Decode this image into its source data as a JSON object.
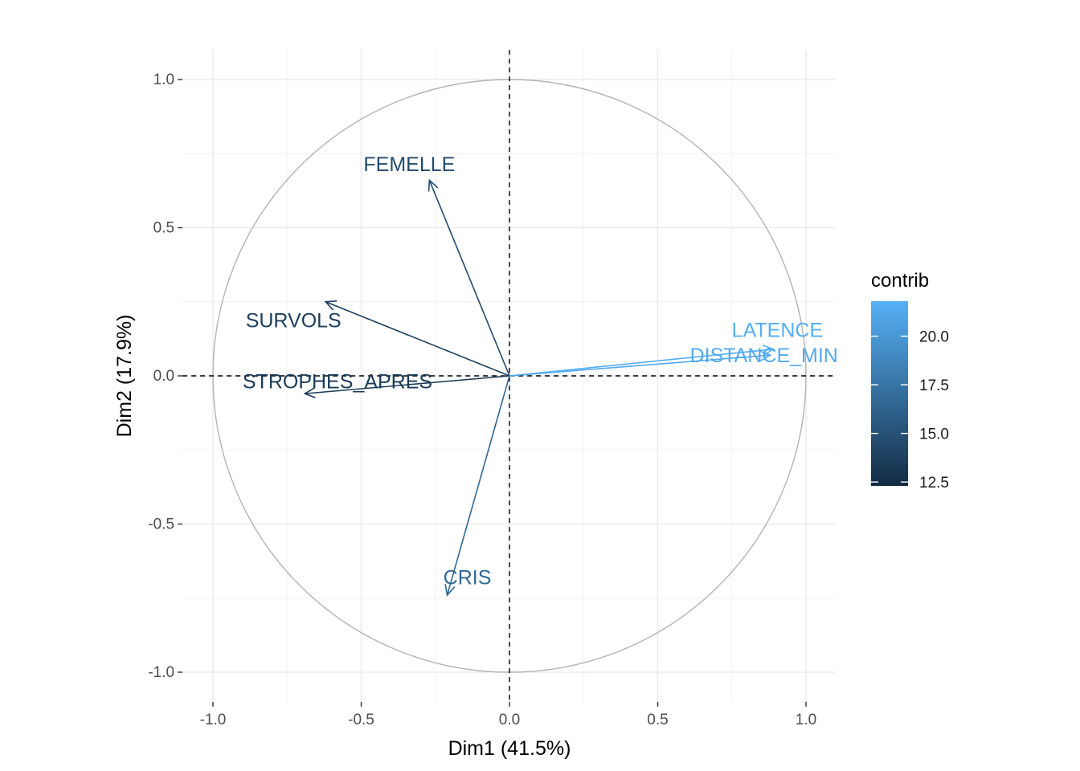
{
  "chart_data": {
    "type": "variable-correlation-circle",
    "xlabel": "Dim1 (41.5%)",
    "ylabel": "Dim2 (17.9%)",
    "xlim": [
      -1.1,
      1.1
    ],
    "ylim": [
      -1.1,
      1.1
    ],
    "x_ticks": [
      -1.0,
      -0.5,
      0.0,
      0.5,
      1.0
    ],
    "y_ticks": [
      -1.0,
      -0.5,
      0.0,
      0.5,
      1.0
    ],
    "x_tick_labels": [
      "-1.0",
      "-0.5",
      "0.0",
      "0.5",
      "1.0"
    ],
    "y_tick_labels": [
      "-1.0",
      "-0.5",
      "0.0",
      "0.5",
      "1.0"
    ],
    "grid": true,
    "unit_circle": true,
    "reference_lines": "dashed at x=0 and y=0",
    "variables": [
      {
        "name": "FEMELLE",
        "x": -0.27,
        "y": 0.66,
        "contrib": 14.5
      },
      {
        "name": "SURVOLS",
        "x": -0.62,
        "y": 0.25,
        "contrib": 13.6
      },
      {
        "name": "STROPHES_APRES",
        "x": -0.69,
        "y": -0.06,
        "contrib": 13.4
      },
      {
        "name": "CRIS",
        "x": -0.21,
        "y": -0.74,
        "contrib": 16.6
      },
      {
        "name": "LATENCE",
        "x": 0.89,
        "y": 0.09,
        "contrib": 21.6
      },
      {
        "name": "DISTANCE_MIN",
        "x": 0.88,
        "y": 0.07,
        "contrib": 21.3
      }
    ],
    "legend": {
      "title": "contrib",
      "position": "right",
      "min": 12.3,
      "max": 21.8,
      "ticks": [
        12.5,
        15.0,
        17.5,
        20.0
      ],
      "tick_labels": [
        "12.5",
        "15.0",
        "17.5",
        "20.0"
      ],
      "low_color": "#132B43",
      "high_color": "#56B1F7"
    }
  }
}
